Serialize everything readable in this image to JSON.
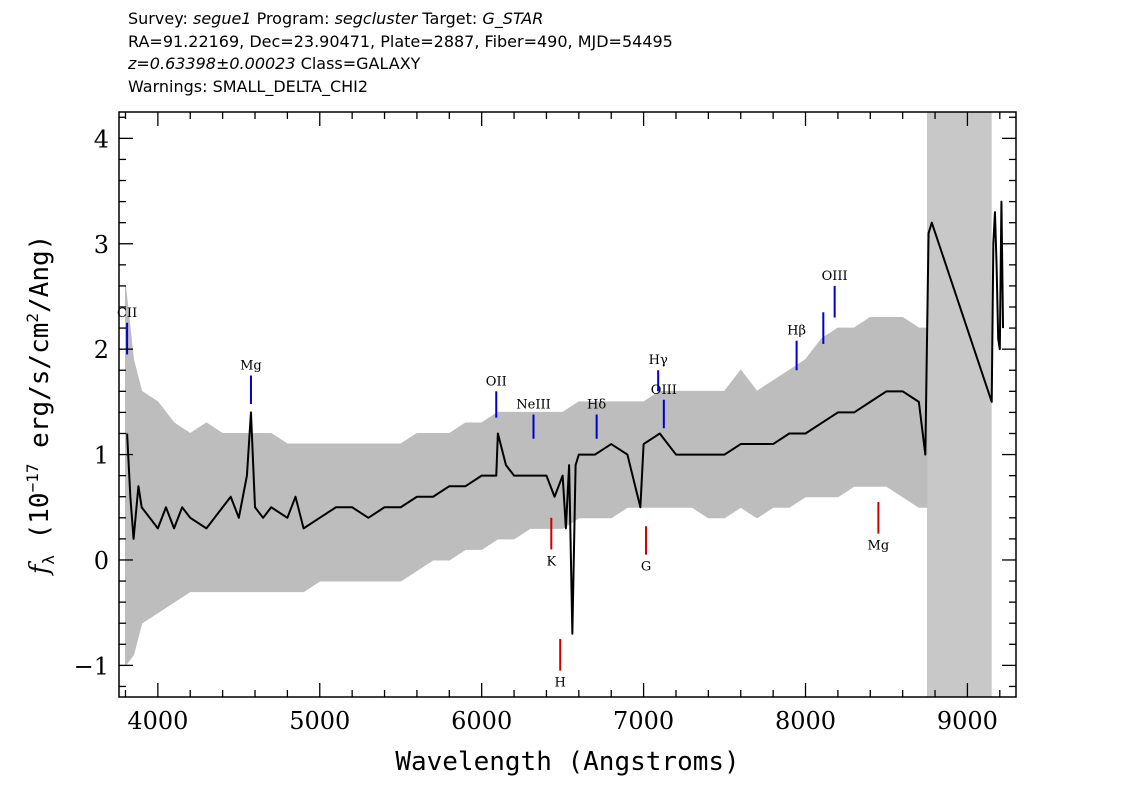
{
  "header": {
    "survey_label": "Survey:",
    "survey": "segue1",
    "program_label": "Program:",
    "program": "segcluster",
    "target_label": "Target:",
    "target": "G_STAR",
    "coords": "RA=91.22169, Dec=23.90471, Plate=2887, Fiber=490, MJD=54495",
    "redshift": "z=0.63398±0.00023",
    "class": "Class=GALAXY",
    "warnings": "Warnings: SMALL_DELTA_CHI2"
  },
  "chart_data": {
    "type": "line",
    "xlabel": "Wavelength (Angstroms)",
    "ylabel": "f_λ (10^-17 erg/s/cm^2/Ang)",
    "xlim": [
      3760,
      9300
    ],
    "ylim": [
      -1.3,
      4.25
    ],
    "x_ticks": [
      4000,
      5000,
      6000,
      7000,
      8000,
      9000
    ],
    "y_ticks": [
      -1,
      0,
      1,
      2,
      3,
      4
    ],
    "x_minor_step": 200,
    "y_minor_step": 0.2,
    "masked_region": {
      "x": [
        8750,
        9150
      ],
      "color": "#c8c8c8"
    },
    "series": [
      {
        "role": "error-envelope",
        "color": "#bdbdbd",
        "x": [
          3800,
          3850,
          3900,
          4000,
          4100,
          4200,
          4300,
          4400,
          4500,
          4600,
          4700,
          4800,
          4900,
          5000,
          5100,
          5200,
          5300,
          5400,
          5500,
          5600,
          5700,
          5800,
          5900,
          6000,
          6100,
          6200,
          6300,
          6400,
          6500,
          6600,
          6700,
          6800,
          6900,
          7000,
          7100,
          7200,
          7300,
          7400,
          7500,
          7600,
          7700,
          7800,
          7900,
          8000,
          8100,
          8200,
          8300,
          8400,
          8500,
          8600,
          8700,
          8750
        ],
        "upper": [
          2.6,
          1.9,
          1.6,
          1.5,
          1.3,
          1.2,
          1.3,
          1.2,
          1.2,
          1.2,
          1.2,
          1.1,
          1.1,
          1.1,
          1.1,
          1.1,
          1.1,
          1.1,
          1.1,
          1.2,
          1.2,
          1.2,
          1.3,
          1.3,
          1.4,
          1.4,
          1.4,
          1.4,
          1.4,
          1.5,
          1.5,
          1.5,
          1.5,
          1.5,
          1.6,
          1.6,
          1.6,
          1.6,
          1.6,
          1.8,
          1.6,
          1.7,
          1.8,
          1.9,
          2.1,
          2.2,
          2.2,
          2.3,
          2.3,
          2.3,
          2.2,
          2.2
        ],
        "lower": [
          -1.0,
          -0.9,
          -0.6,
          -0.5,
          -0.4,
          -0.3,
          -0.3,
          -0.3,
          -0.3,
          -0.3,
          -0.3,
          -0.3,
          -0.3,
          -0.2,
          -0.2,
          -0.2,
          -0.2,
          -0.2,
          -0.2,
          -0.1,
          0.0,
          0.0,
          0.1,
          0.1,
          0.2,
          0.2,
          0.3,
          0.3,
          0.3,
          0.4,
          0.4,
          0.4,
          0.5,
          0.5,
          0.5,
          0.5,
          0.5,
          0.4,
          0.4,
          0.5,
          0.4,
          0.5,
          0.5,
          0.6,
          0.6,
          0.6,
          0.7,
          0.7,
          0.7,
          0.6,
          0.5,
          0.5
        ]
      },
      {
        "role": "flux",
        "color": "#000000",
        "x": [
          3810,
          3830,
          3850,
          3880,
          3900,
          3950,
          4000,
          4050,
          4100,
          4150,
          4200,
          4300,
          4400,
          4450,
          4500,
          4550,
          4575,
          4600,
          4650,
          4700,
          4800,
          4850,
          4900,
          5000,
          5100,
          5200,
          5300,
          5400,
          5500,
          5600,
          5700,
          5800,
          5900,
          6000,
          6090,
          6100,
          6150,
          6200,
          6300,
          6400,
          6450,
          6500,
          6520,
          6540,
          6560,
          6580,
          6600,
          6700,
          6800,
          6900,
          6980,
          7000,
          7100,
          7200,
          7300,
          7400,
          7500,
          7600,
          7700,
          7800,
          7900,
          8000,
          8100,
          8200,
          8300,
          8400,
          8500,
          8600,
          8700,
          8740,
          8760,
          8780,
          9150,
          9160,
          9170,
          9180,
          9190,
          9200,
          9210,
          9220
        ],
        "y": [
          1.2,
          0.6,
          0.2,
          0.7,
          0.5,
          0.4,
          0.3,
          0.5,
          0.3,
          0.5,
          0.4,
          0.3,
          0.5,
          0.6,
          0.4,
          0.8,
          1.4,
          0.5,
          0.4,
          0.5,
          0.4,
          0.6,
          0.3,
          0.4,
          0.5,
          0.5,
          0.4,
          0.5,
          0.5,
          0.6,
          0.6,
          0.7,
          0.7,
          0.8,
          0.8,
          1.2,
          0.9,
          0.8,
          0.8,
          0.8,
          0.6,
          0.8,
          0.3,
          0.9,
          -0.7,
          0.9,
          1.0,
          1.0,
          1.1,
          1.0,
          0.5,
          1.1,
          1.2,
          1.0,
          1.0,
          1.0,
          1.0,
          1.1,
          1.1,
          1.1,
          1.2,
          1.2,
          1.3,
          1.4,
          1.4,
          1.5,
          1.6,
          1.6,
          1.5,
          1.0,
          3.1,
          3.2,
          1.5,
          3.0,
          3.3,
          2.8,
          2.1,
          2.0,
          3.4,
          2.2
        ]
      }
    ],
    "line_markers": [
      {
        "label": "CII",
        "x": 3810,
        "color": "#0000cc",
        "y_start": 1.95,
        "y_end": 2.25,
        "position": "above"
      },
      {
        "label": "Mg",
        "x": 4575,
        "color": "#0000cc",
        "y_start": 1.48,
        "y_end": 1.75,
        "position": "above"
      },
      {
        "label": "OII",
        "x": 6090,
        "color": "#0000cc",
        "y_start": 1.35,
        "y_end": 1.6,
        "position": "above"
      },
      {
        "label": "NeIII",
        "x": 6320,
        "color": "#0000cc",
        "y_start": 1.15,
        "y_end": 1.38,
        "position": "above"
      },
      {
        "label": "Hδ",
        "x": 6710,
        "color": "#0000cc",
        "y_start": 1.15,
        "y_end": 1.38,
        "position": "above"
      },
      {
        "label": "Hγ",
        "x": 7090,
        "color": "#0000cc",
        "y_start": 1.6,
        "y_end": 1.8,
        "position": "above"
      },
      {
        "label": "OIII",
        "x": 7125,
        "color": "#0000cc",
        "y_start": 1.25,
        "y_end": 1.52,
        "position": "above"
      },
      {
        "label": "Hβ",
        "x": 7945,
        "color": "#0000cc",
        "y_start": 1.8,
        "y_end": 2.08,
        "position": "above"
      },
      {
        "label": "OIII",
        "x": 8180,
        "color": "#0000cc",
        "y_start": 2.3,
        "y_end": 2.6,
        "position": "above"
      },
      {
        "label": "",
        "x": 8110,
        "color": "#0000cc",
        "y_start": 2.05,
        "y_end": 2.35,
        "position": "above"
      },
      {
        "label": "K",
        "x": 6430,
        "color": "#cc0000",
        "y_start": 0.4,
        "y_end": 0.1,
        "position": "below"
      },
      {
        "label": "H",
        "x": 6485,
        "color": "#cc0000",
        "y_start": -0.75,
        "y_end": -1.05,
        "position": "below"
      },
      {
        "label": "G",
        "x": 7015,
        "color": "#cc0000",
        "y_start": 0.32,
        "y_end": 0.05,
        "position": "below"
      },
      {
        "label": "Mg",
        "x": 8450,
        "color": "#cc0000",
        "y_start": 0.55,
        "y_end": 0.25,
        "position": "below"
      }
    ]
  }
}
